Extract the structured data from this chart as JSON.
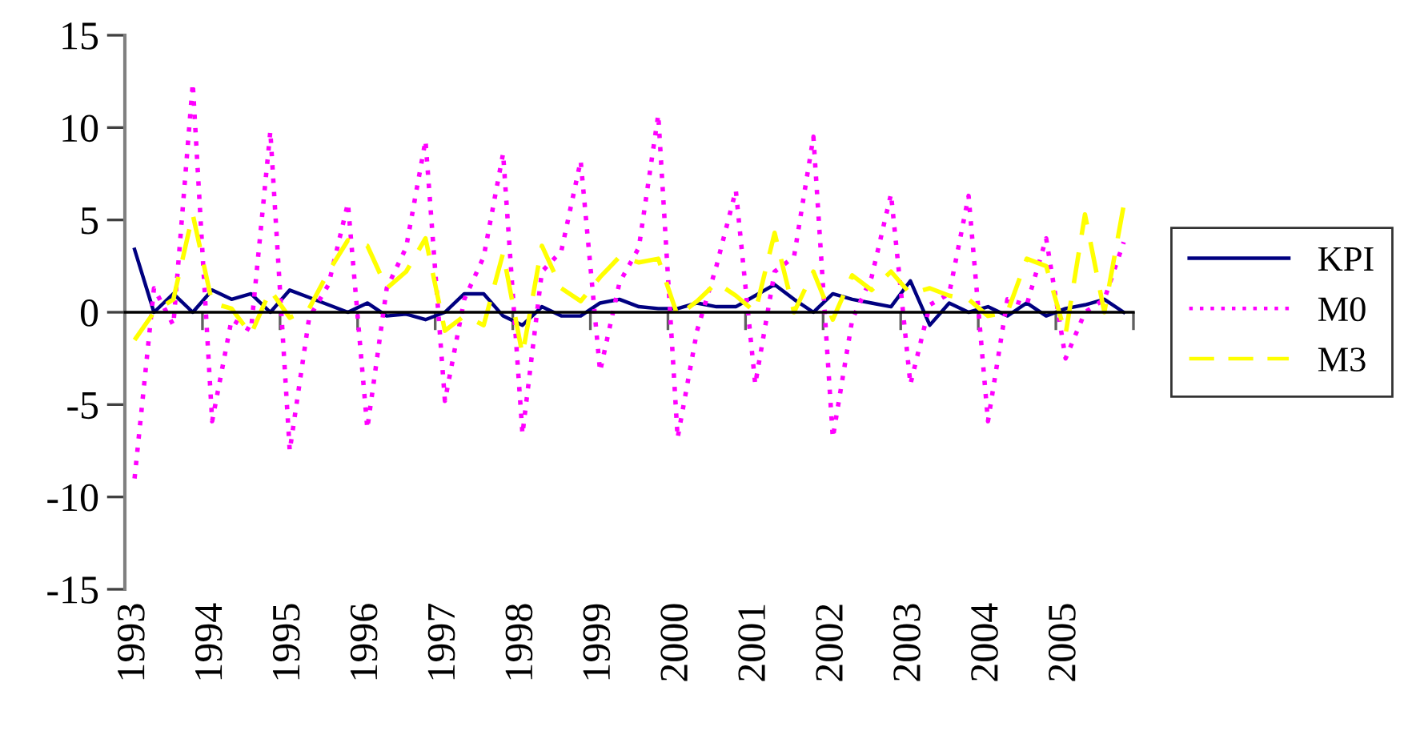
{
  "chart_data": {
    "type": "line",
    "categories": [
      "1993",
      null,
      null,
      null,
      "1994",
      null,
      null,
      null,
      "1995",
      null,
      null,
      null,
      "1996",
      null,
      null,
      null,
      "1997",
      null,
      null,
      null,
      "1998",
      null,
      null,
      null,
      "1999",
      null,
      null,
      null,
      "2000",
      null,
      null,
      null,
      "2001",
      null,
      null,
      null,
      "2002",
      null,
      null,
      null,
      "2003",
      null,
      null,
      null,
      "2004",
      null,
      null,
      null,
      "2005",
      null,
      null,
      null
    ],
    "series": [
      {
        "name": "KPI",
        "color": "#000080",
        "line_style": "solid",
        "values": [
          3.4,
          0,
          1.0,
          0,
          1.2,
          0.7,
          1.0,
          0,
          1.2,
          0.8,
          0.4,
          0,
          0.5,
          -0.2,
          -0.1,
          -0.4,
          0,
          1.0,
          1.0,
          -0.2,
          -0.7,
          0.3,
          -0.2,
          -0.2,
          0.5,
          0.7,
          0.3,
          0.2,
          0.2,
          0.5,
          0.3,
          0.3,
          0.9,
          1.5,
          0.7,
          0,
          1.0,
          0.7,
          0.5,
          0.3,
          1.7,
          -0.7,
          0.5,
          0,
          0.3,
          -0.2,
          0.5,
          -0.2,
          0.2,
          0.4,
          0.7,
          0
        ]
      },
      {
        "name": "M0",
        "color": "#ff00ff",
        "line_style": "dotted",
        "values": [
          -9.0,
          1.3,
          -0.7,
          12.4,
          -5.9,
          -0.4,
          -1.0,
          9.8,
          -7.5,
          -0.3,
          1.5,
          5.9,
          -6.3,
          1.3,
          3.5,
          9.3,
          -4.8,
          0.7,
          3.0,
          8.6,
          -6.6,
          2.2,
          3.3,
          8.2,
          -3.2,
          1.6,
          3.5,
          10.7,
          -6.8,
          -1.0,
          2.5,
          6.6,
          -3.9,
          2.2,
          3.0,
          9.5,
          -6.8,
          -0.4,
          1.9,
          6.4,
          -3.9,
          0.4,
          1.0,
          6.3,
          -5.9,
          0.7,
          0.4,
          4.0,
          -2.5,
          0,
          0.7,
          3.8
        ]
      },
      {
        "name": "M3",
        "color": "#ffff00",
        "line_style": "dashed",
        "values": [
          -1.5,
          0,
          0.7,
          5.3,
          0.5,
          0.2,
          -1.2,
          1.2,
          -0.3,
          0.2,
          2.2,
          3.9,
          3.6,
          1.3,
          2.2,
          4.0,
          -1.0,
          -0.2,
          -0.7,
          3.2,
          -2.3,
          3.6,
          1.3,
          0.6,
          1.9,
          3.0,
          2.7,
          2.9,
          -0.2,
          0.6,
          1.6,
          0.9,
          0,
          4.3,
          0,
          2.2,
          -0.4,
          2.0,
          1.2,
          2.2,
          1.0,
          1.3,
          0.9,
          0.7,
          -0.2,
          0,
          2.9,
          2.5,
          -1.2,
          5.3,
          0,
          5.8
        ]
      }
    ],
    "ylim": [
      -15,
      15
    ],
    "yticks": [
      {
        "value": -15,
        "label": "-15"
      },
      {
        "value": -10,
        "label": "-10"
      },
      {
        "value": -5,
        "label": "-5"
      },
      0,
      5,
      10,
      15
    ],
    "legend": "right",
    "marker": "none"
  }
}
